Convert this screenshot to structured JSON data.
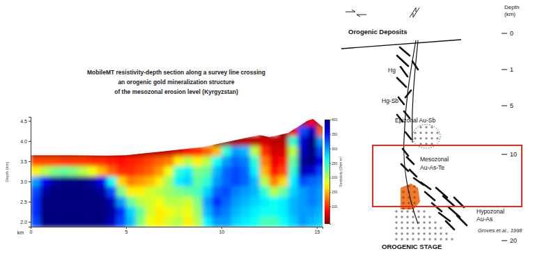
{
  "chart_data": {
    "type": "heatmap",
    "title": [
      "MobileMT resistivity-depth section along a survey line crossing",
      "an orogenic gold mineralization structure",
      "of the mesozonal erosion level (Kyrgyzstan)"
    ],
    "xlabel": "km",
    "ylabel": "Depth (km)",
    "x": [
      0.25,
      0.75,
      1.25,
      1.75,
      2.25,
      2.75,
      3.25,
      3.75,
      4.25,
      4.75,
      5.25,
      5.75,
      6.25,
      6.75,
      7.25,
      7.75,
      8.25,
      8.75,
      9.25,
      9.75,
      10.25,
      10.75,
      11.25,
      11.75,
      12.25,
      12.75,
      13.25,
      13.75,
      14.25,
      14.75,
      15.25
    ],
    "y": [
      4.5,
      4.25,
      4.0,
      3.75,
      3.5,
      3.25,
      3.0,
      2.75,
      2.5,
      2.25,
      2.0
    ],
    "z": [
      [
        null,
        null,
        null,
        null,
        null,
        null,
        null,
        null,
        null,
        null,
        null,
        null,
        null,
        null,
        null,
        null,
        null,
        null,
        null,
        null,
        null,
        null,
        null,
        null,
        null,
        null,
        null,
        null,
        60,
        80,
        60
      ],
      [
        null,
        null,
        null,
        null,
        null,
        null,
        null,
        null,
        null,
        null,
        null,
        null,
        null,
        null,
        null,
        null,
        null,
        null,
        null,
        null,
        null,
        null,
        null,
        null,
        50,
        null,
        50,
        80,
        330,
        380,
        120
      ],
      [
        null,
        null,
        null,
        null,
        null,
        null,
        null,
        null,
        null,
        null,
        null,
        null,
        null,
        null,
        null,
        null,
        null,
        null,
        null,
        45,
        50,
        55,
        60,
        60,
        70,
        60,
        60,
        250,
        370,
        400,
        300
      ],
      [
        45,
        45,
        45,
        45,
        45,
        45,
        45,
        45,
        45,
        50,
        55,
        55,
        60,
        60,
        65,
        70,
        90,
        100,
        120,
        150,
        250,
        300,
        290,
        200,
        100,
        70,
        70,
        200,
        380,
        400,
        330
      ],
      [
        110,
        110,
        110,
        105,
        105,
        105,
        100,
        100,
        95,
        90,
        95,
        100,
        110,
        120,
        130,
        170,
        200,
        170,
        200,
        260,
        300,
        320,
        310,
        250,
        130,
        80,
        90,
        230,
        390,
        400,
        360
      ],
      [
        170,
        200,
        220,
        230,
        220,
        200,
        180,
        150,
        120,
        100,
        100,
        110,
        120,
        140,
        180,
        250,
        270,
        220,
        230,
        290,
        320,
        330,
        320,
        270,
        150,
        90,
        110,
        250,
        380,
        370,
        330
      ],
      [
        300,
        360,
        390,
        400,
        400,
        400,
        390,
        360,
        260,
        160,
        130,
        140,
        150,
        170,
        210,
        270,
        280,
        230,
        250,
        300,
        320,
        330,
        320,
        290,
        200,
        130,
        160,
        270,
        330,
        320,
        310
      ],
      [
        330,
        390,
        400,
        400,
        400,
        400,
        400,
        390,
        330,
        220,
        170,
        170,
        190,
        200,
        210,
        220,
        230,
        240,
        280,
        320,
        330,
        310,
        300,
        290,
        250,
        200,
        230,
        280,
        300,
        310,
        300
      ],
      [
        340,
        400,
        400,
        400,
        400,
        400,
        400,
        400,
        380,
        300,
        230,
        200,
        190,
        180,
        200,
        200,
        190,
        220,
        300,
        340,
        320,
        300,
        290,
        280,
        270,
        260,
        270,
        290,
        300,
        310,
        300
      ],
      [
        340,
        400,
        400,
        400,
        400,
        400,
        400,
        400,
        390,
        340,
        280,
        230,
        190,
        170,
        180,
        190,
        180,
        210,
        290,
        320,
        310,
        290,
        280,
        270,
        260,
        260,
        270,
        290,
        300,
        300,
        290
      ],
      [
        330,
        400,
        400,
        400,
        400,
        400,
        400,
        400,
        380,
        330,
        290,
        220,
        180,
        170,
        190,
        200,
        170,
        200,
        270,
        300,
        300,
        280,
        270,
        260,
        240,
        240,
        260,
        280,
        300,
        290,
        280
      ]
    ],
    "xlim": [
      0,
      15.3
    ],
    "xticks": [
      0,
      5,
      10,
      15
    ],
    "ylim": [
      1.88,
      4.6
    ],
    "yticks": [
      {
        "value": 2,
        "label": "2.0"
      },
      {
        "value": 2.5,
        "label": "2.5"
      },
      {
        "value": 3,
        "label": "3.0"
      },
      {
        "value": 3.5,
        "label": "3.5"
      },
      {
        "value": 4,
        "label": "4.0"
      },
      {
        "value": 4.5,
        "label": "4.5"
      }
    ],
    "surface": {
      "x": [
        0,
        2,
        4,
        5,
        6,
        7,
        8,
        9,
        10,
        11,
        11.5,
        12,
        12.5,
        13,
        13.5,
        14,
        14.5,
        14.8,
        15.3
      ],
      "y": [
        3.65,
        3.65,
        3.64,
        3.65,
        3.7,
        3.75,
        3.8,
        3.85,
        3.95,
        4.05,
        4.1,
        4.15,
        4.1,
        4.15,
        4.2,
        4.35,
        4.5,
        4.55,
        4.35
      ]
    },
    "colorbar": {
      "range": [
        40,
        400
      ],
      "ticks": [
        100,
        150,
        200,
        250,
        300,
        350,
        400
      ],
      "label": "Resistivity (Ohm·m)"
    }
  },
  "diagram": {
    "header": "Orogenic Deposits",
    "depth_label": [
      "Depth",
      "(km)"
    ],
    "depth_ticks": [
      0,
      1,
      5,
      10,
      20
    ],
    "zones": [
      {
        "lines": [
          "Hg"
        ]
      },
      {
        "lines": [
          "Hg-Sb"
        ]
      },
      {
        "lines": [
          "Epizonal Au-Sb"
        ]
      },
      {
        "lines": [
          "Mesozonal",
          "Au-As-Te"
        ]
      },
      {
        "lines": [
          "Hypozonal",
          "Au-As"
        ]
      }
    ],
    "citation": "Groves et al., 1998",
    "footer": "OROGENIC STAGE"
  }
}
